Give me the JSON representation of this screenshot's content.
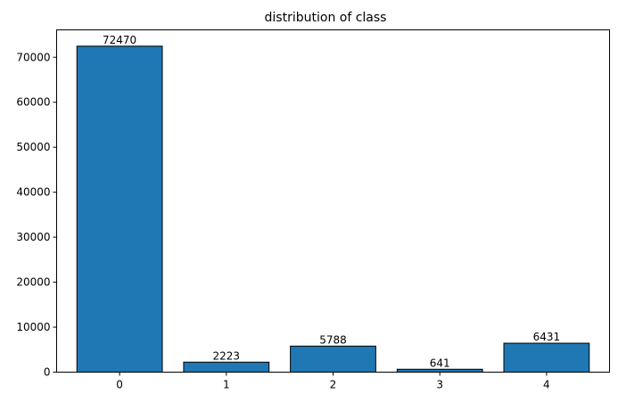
{
  "chart_data": {
    "type": "bar",
    "title": "distribution of class",
    "xlabel": "",
    "ylabel": "",
    "categories": [
      "0",
      "1",
      "2",
      "3",
      "4"
    ],
    "values": [
      72470,
      2223,
      5788,
      641,
      6431
    ],
    "data_labels": [
      "72470",
      "2223",
      "5788",
      "641",
      "6431"
    ],
    "ylim": [
      0,
      76093.5
    ],
    "yticks": [
      0,
      10000,
      20000,
      30000,
      40000,
      50000,
      60000,
      70000
    ],
    "ytick_labels": [
      "0",
      "10000",
      "20000",
      "30000",
      "40000",
      "50000",
      "60000",
      "70000"
    ],
    "grid": false,
    "legend": "none",
    "colors": {
      "bar_fill": "#1f77b4",
      "bar_edge": "#000000",
      "axis": "#000000"
    }
  }
}
